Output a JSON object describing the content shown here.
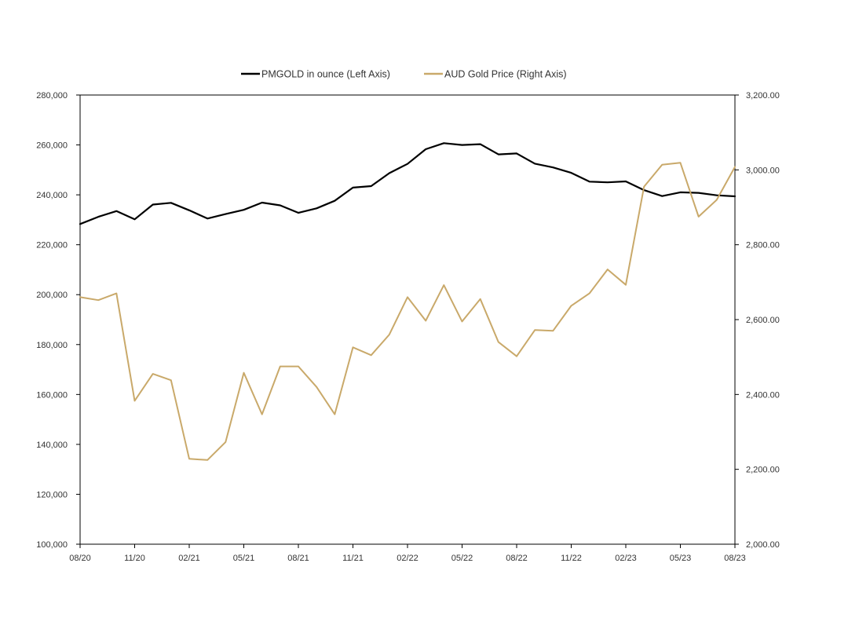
{
  "chart_data": {
    "type": "line",
    "title": "",
    "legend": {
      "placement": "top-center",
      "entries": [
        "PMGOLD in ounce (Left Axis)",
        "AUD Gold Price (Right Axis)"
      ]
    },
    "categories": [
      "08/20",
      "09/20",
      "10/20",
      "11/20",
      "12/20",
      "01/21",
      "02/21",
      "03/21",
      "04/21",
      "05/21",
      "06/21",
      "07/21",
      "08/21",
      "09/21",
      "10/21",
      "11/21",
      "12/21",
      "01/22",
      "02/22",
      "03/22",
      "04/22",
      "05/22",
      "06/22",
      "07/22",
      "08/22",
      "09/22",
      "10/22",
      "11/22",
      "12/22",
      "01/23",
      "02/23",
      "03/23",
      "04/23",
      "05/23",
      "06/23",
      "07/23",
      "08/23"
    ],
    "x_tick_labels": [
      "08/20",
      "11/20",
      "02/21",
      "05/21",
      "08/21",
      "11/21",
      "02/22",
      "05/22",
      "08/22",
      "11/22",
      "02/23",
      "05/23",
      "08/23"
    ],
    "x_tick_indices": [
      0,
      3,
      6,
      9,
      12,
      15,
      18,
      21,
      24,
      27,
      30,
      33,
      36
    ],
    "left_axis": {
      "ylim": [
        100000,
        280000
      ],
      "ticks": [
        100000,
        120000,
        140000,
        160000,
        180000,
        200000,
        220000,
        240000,
        260000,
        280000
      ],
      "tick_labels": [
        "100,000",
        "120,000",
        "140,000",
        "160,000",
        "180,000",
        "200,000",
        "220,000",
        "240,000",
        "260,000",
        "280,000"
      ]
    },
    "right_axis": {
      "ylim": [
        2000,
        3200
      ],
      "ticks": [
        2000,
        2200,
        2400,
        2600,
        2800,
        3000,
        3200
      ],
      "tick_labels": [
        "2,000.00",
        "2,200.00",
        "2,400.00",
        "2,600.00",
        "2,800.00",
        "3,000.00",
        "3,200.00"
      ]
    },
    "series": [
      {
        "name": "PMGOLD in ounce (Left Axis)",
        "axis": "left",
        "color": "#000000",
        "values": [
          228300,
          231200,
          233500,
          230200,
          236100,
          236800,
          233800,
          230500,
          232300,
          234000,
          236900,
          235800,
          232800,
          234600,
          237600,
          242900,
          243500,
          248700,
          252400,
          258300,
          260700,
          260000,
          260300,
          256200,
          256600,
          252500,
          251000,
          248800,
          245300,
          245000,
          245400,
          241900,
          239500,
          241000,
          240800,
          239800,
          239400
        ]
      },
      {
        "name": "AUD Gold Price (Right Axis)",
        "axis": "right",
        "color": "#C9A96A",
        "values": [
          2660,
          2652,
          2670,
          2383,
          2455,
          2438,
          2228,
          2225,
          2273,
          2458,
          2347,
          2475,
          2475,
          2420,
          2347,
          2526,
          2505,
          2560,
          2660,
          2597,
          2692,
          2595,
          2655,
          2540,
          2502,
          2572,
          2570,
          2637,
          2670,
          2734,
          2693,
          2955,
          3014,
          3019,
          2875,
          2920,
          3008
        ]
      }
    ]
  }
}
